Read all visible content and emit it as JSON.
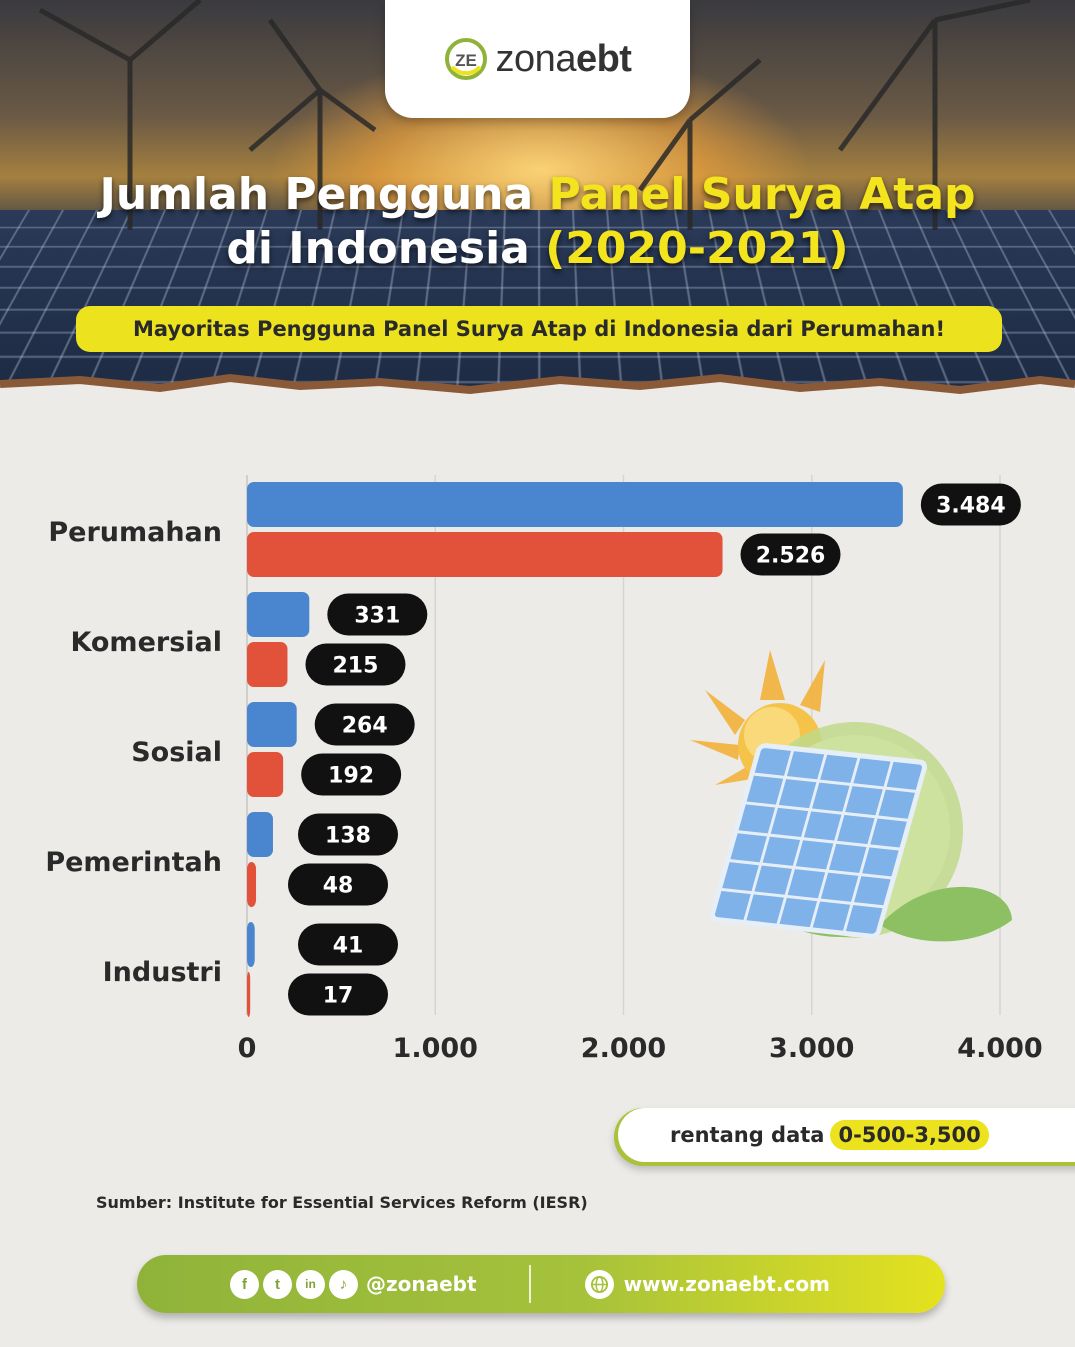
{
  "brand": {
    "name_light": "zona",
    "name_bold": "ebt",
    "mark": "ZE"
  },
  "header": {
    "title_line1_white": "Jumlah Pengguna ",
    "title_line1_yellow": "Panel Surya Atap",
    "title_line2_white": "di Indonesia ",
    "title_line2_yellow": "(2020-2021)",
    "subtitle": "Mayoritas Pengguna Panel Surya Atap di Indonesia dari Perumahan!"
  },
  "colors": {
    "series_2021": "#4a86cf",
    "series_2020": "#e2523a",
    "accent_yellow": "#ece31e",
    "accent_green": "#a8c23a",
    "label_bg": "#111111"
  },
  "chart_data": {
    "type": "bar",
    "orientation": "horizontal",
    "categories": [
      "Perumahan",
      "Komersial",
      "Sosial",
      "Pemerintah",
      "Industri"
    ],
    "series": [
      {
        "values": [
          3484,
          331,
          264,
          138,
          41
        ],
        "labels": [
          "3.484",
          "331",
          "264",
          "138",
          "41"
        ]
      },
      {
        "values": [
          2526,
          215,
          192,
          48,
          17
        ],
        "labels": [
          "2.526",
          "215",
          "192",
          "48",
          "17"
        ]
      }
    ],
    "xlim": [
      0,
      4000
    ],
    "x_ticks": [
      0,
      1000,
      2000,
      3000,
      4000
    ],
    "x_tick_labels": [
      "0",
      "1.000",
      "2.000",
      "3.000",
      "4.000"
    ],
    "grid": true,
    "title": "",
    "xlabel": "",
    "ylabel": ""
  },
  "range_note": {
    "label": "rentang data",
    "value": "0-500-3,500"
  },
  "source": "Sumber: Institute for Essential Services Reform (IESR)",
  "footer": {
    "social_icons": [
      "f",
      "t",
      "in",
      "♪"
    ],
    "handle": "@zonaebt",
    "website": "www.zonaebt.com"
  }
}
